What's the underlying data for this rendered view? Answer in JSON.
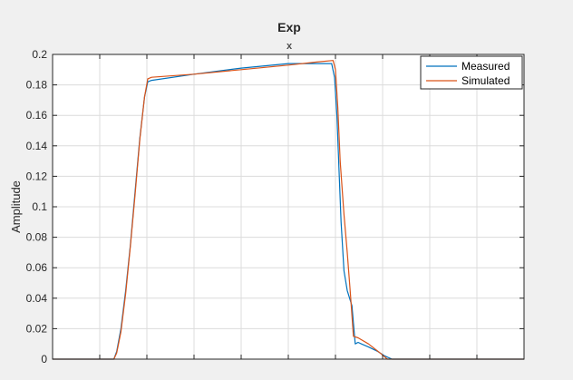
{
  "chart_data": {
    "type": "line",
    "title": "Exp",
    "subtitle": "x",
    "xlabel": "",
    "ylabel": "Amplitude",
    "xlim": [
      0,
      10
    ],
    "ylim": [
      0,
      0.2
    ],
    "yticks": [
      0,
      0.02,
      0.04,
      0.06,
      0.08,
      0.1,
      0.12,
      0.14,
      0.16,
      0.18,
      0.2
    ],
    "ytick_labels": [
      "0",
      "0.02",
      "0.04",
      "0.06",
      "0.08",
      "0.1",
      "0.12",
      "0.14",
      "0.16",
      "0.18",
      "0.2"
    ],
    "xticks": [
      0,
      1,
      2,
      3,
      4,
      5,
      6,
      7,
      8,
      9,
      10
    ],
    "grid": true,
    "legend_position": "top-right",
    "series": [
      {
        "name": "Measured",
        "color": "#0072bd",
        "x": [
          0,
          1.3,
          1.36,
          1.45,
          1.55,
          1.65,
          1.75,
          1.85,
          1.95,
          2.02,
          2.1,
          3,
          4,
          5,
          5.6,
          5.92,
          5.98,
          6.03,
          6.08,
          6.12,
          6.18,
          6.25,
          6.35,
          6.42,
          6.48,
          6.55,
          6.7,
          6.9,
          7.05,
          7.2,
          10
        ],
        "y": [
          0,
          0,
          0.005,
          0.02,
          0.045,
          0.075,
          0.11,
          0.145,
          0.172,
          0.182,
          0.183,
          0.187,
          0.191,
          0.194,
          0.194,
          0.194,
          0.185,
          0.16,
          0.12,
          0.09,
          0.058,
          0.045,
          0.035,
          0.01,
          0.011,
          0.01,
          0.008,
          0.005,
          0.002,
          0,
          0
        ]
      },
      {
        "name": "Simulated",
        "color": "#d95319",
        "x": [
          0,
          1.3,
          1.36,
          1.45,
          1.55,
          1.65,
          1.75,
          1.85,
          1.95,
          2.02,
          2.1,
          3,
          4,
          5,
          5.6,
          5.95,
          6.0,
          6.05,
          6.1,
          6.18,
          6.25,
          6.32,
          6.38,
          6.48,
          6.7,
          6.95,
          7.1,
          10
        ],
        "y": [
          0,
          0,
          0.004,
          0.018,
          0.043,
          0.074,
          0.108,
          0.144,
          0.172,
          0.184,
          0.185,
          0.187,
          0.19,
          0.193,
          0.195,
          0.196,
          0.19,
          0.165,
          0.13,
          0.095,
          0.07,
          0.042,
          0.015,
          0.014,
          0.01,
          0.004,
          0,
          0
        ]
      }
    ]
  }
}
